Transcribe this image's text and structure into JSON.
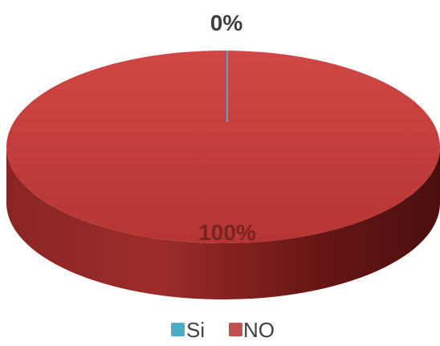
{
  "chart_data": {
    "type": "pie",
    "style": "3d",
    "categories": [
      "Si",
      "NO"
    ],
    "values": [
      0,
      100
    ],
    "data_labels": [
      "0%",
      "100%"
    ],
    "legend": {
      "position": "bottom",
      "entries": [
        "Si",
        "NO"
      ]
    },
    "colors": {
      "Si": "#4bacc6",
      "NO": "#c0504d"
    }
  }
}
